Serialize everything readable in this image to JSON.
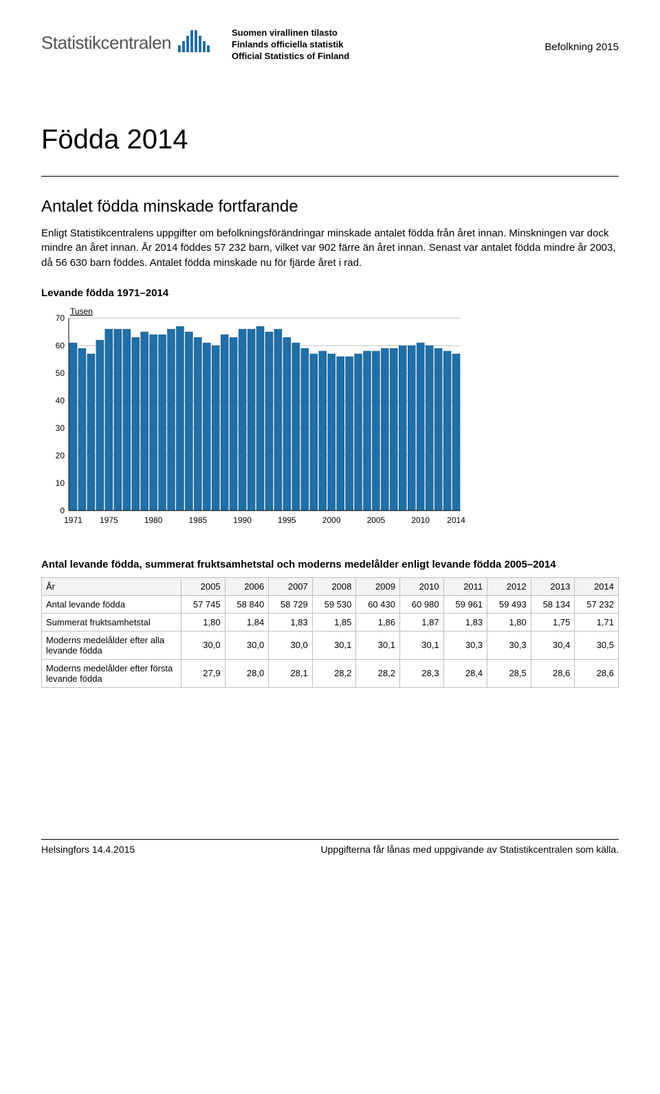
{
  "header": {
    "brand": "Statistikcentralen",
    "official_line1": "Suomen virallinen tilasto",
    "official_line2": "Finlands officiella statistik",
    "official_line3": "Official Statistics of Finland",
    "category": "Befolkning 2015"
  },
  "title": "Födda 2014",
  "subtitle": "Antalet födda minskade fortfarande",
  "paragraph": "Enligt Statistikcentralens uppgifter om befolkningsförändringar minskade antalet födda från året innan. Minskningen var dock mindre än året innan. År 2014 föddes 57 232 barn, vilket var 902 färre än året innan. Senast var antalet födda mindre år 2003, då 56 630 barn föddes. Antalet födda minskade nu för fjärde året i rad.",
  "chart": {
    "title": "Levande födda 1971–2014",
    "y_label": "Tusen",
    "y_ticks": [
      0,
      10,
      20,
      30,
      40,
      50,
      60,
      70
    ],
    "x_ticks": [
      "1971",
      "1975",
      "1980",
      "1985",
      "1990",
      "1995",
      "2000",
      "2005",
      "2010",
      "2014"
    ],
    "x_tick_positions": [
      0,
      4,
      9,
      14,
      19,
      24,
      29,
      34,
      39,
      43
    ],
    "bar_color": "#1f6fa8",
    "bar_border": "#0f4a73",
    "grid_color": "#808080",
    "background": "#ffffff",
    "values": [
      61,
      59,
      57,
      62,
      66,
      66,
      66,
      63,
      65,
      64,
      64,
      66,
      67,
      65,
      63,
      61,
      60,
      64,
      63,
      66,
      66,
      67,
      65,
      66,
      63,
      61,
      59,
      57,
      58,
      57,
      56,
      56,
      57,
      58,
      58,
      59,
      59,
      60,
      60,
      61,
      60,
      59,
      58,
      57
    ]
  },
  "table": {
    "title": "Antal levande födda, summerat fruktsamhetstal och moderns medelålder enligt levande födda 2005–2014",
    "header": [
      "År",
      "2005",
      "2006",
      "2007",
      "2008",
      "2009",
      "2010",
      "2011",
      "2012",
      "2013",
      "2014"
    ],
    "rows": [
      {
        "label": "Antal levande födda",
        "cells": [
          "57 745",
          "58 840",
          "58 729",
          "59 530",
          "60 430",
          "60 980",
          "59 961",
          "59 493",
          "58 134",
          "57 232"
        ]
      },
      {
        "label": "Summerat fruktsamhetstal",
        "cells": [
          "1,80",
          "1,84",
          "1,83",
          "1,85",
          "1,86",
          "1,87",
          "1,83",
          "1,80",
          "1,75",
          "1,71"
        ]
      },
      {
        "label": "Moderns medelålder efter alla levande födda",
        "cells": [
          "30,0",
          "30,0",
          "30,0",
          "30,1",
          "30,1",
          "30,1",
          "30,3",
          "30,3",
          "30,4",
          "30,5"
        ]
      },
      {
        "label": "Moderns medelålder efter första levande födda",
        "cells": [
          "27,9",
          "28,0",
          "28,1",
          "28,2",
          "28,2",
          "28,3",
          "28,4",
          "28,5",
          "28,6",
          "28,6"
        ]
      }
    ]
  },
  "footer": {
    "left": "Helsingfors 14.4.2015",
    "right": "Uppgifterna får lånas med uppgivande av Statistikcentralen som källa."
  }
}
